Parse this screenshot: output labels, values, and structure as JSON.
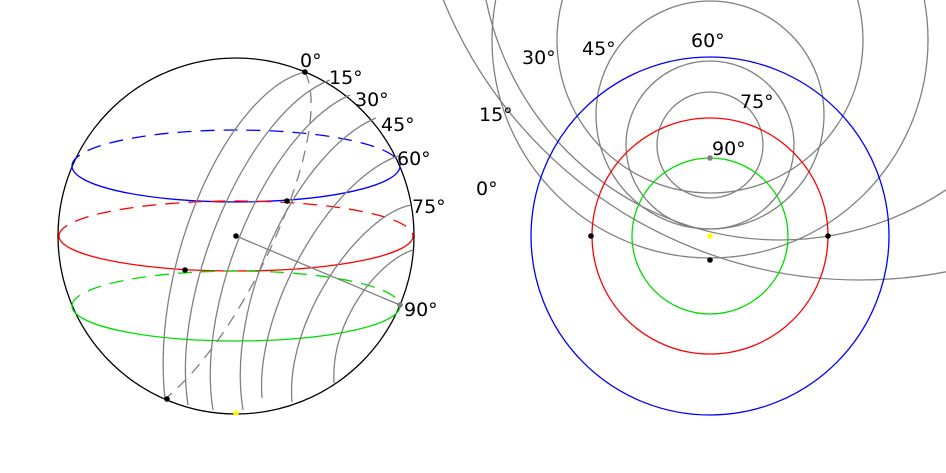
{
  "left_figure": {
    "angle_labels": [
      "0°",
      "15°",
      "30°",
      "45°",
      "60°",
      "75°",
      "90°"
    ]
  },
  "right_figure": {
    "angle_labels": [
      "0°",
      "15°",
      "30°",
      "45°",
      "60°",
      "75°",
      "90°"
    ]
  },
  "colors": {
    "sphere_outline": "#000000",
    "latitude_top": "#0000ff",
    "latitude_middle": "#ff0000",
    "latitude_bottom": "#00dd00",
    "meridian_circles": "#808080",
    "marker_point": "#000000",
    "highlight_point": "#ffff00"
  }
}
